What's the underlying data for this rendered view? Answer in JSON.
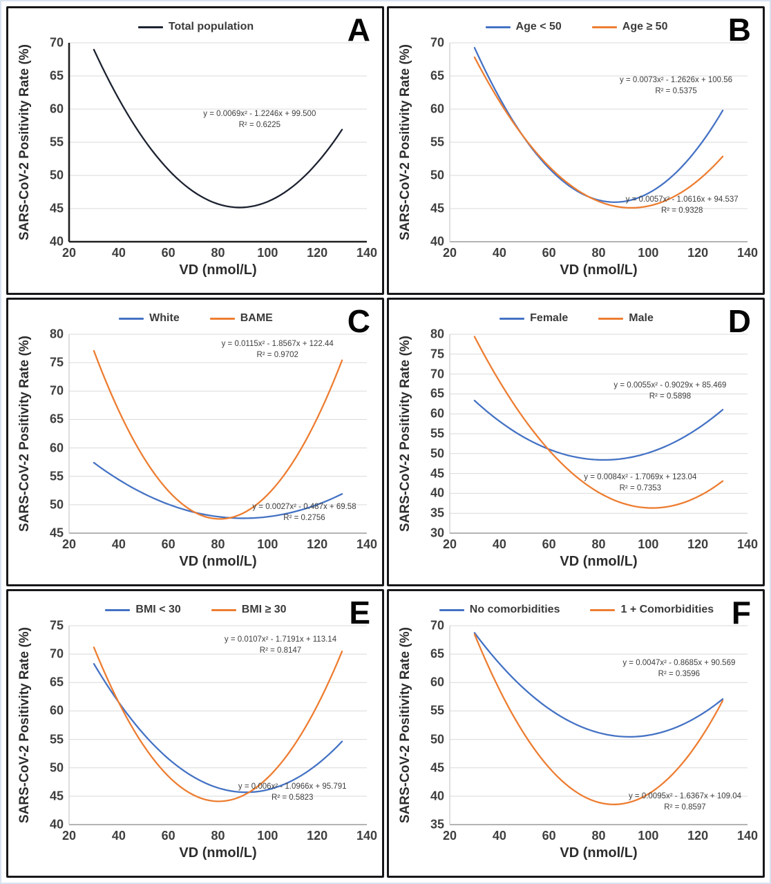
{
  "figure": {
    "description": "Six-panel figure of quadratic fits of SARS-CoV-2 positivity rate versus vitamin D concentration",
    "colors": {
      "blue": "#4472C4",
      "orange": "#ED7D31",
      "black_line": "#1c2230",
      "grid_line": "#d9d9d9",
      "axis_dark": "#1f1f1f",
      "axis_light": "#9a9a9a",
      "tick_text": "#3f3f3f"
    }
  },
  "chart_data": [
    {
      "type": "line",
      "letter": "A",
      "xlabel": "VD (nmol/L)",
      "ylabel": "SARS-CoV-2 Positivity Rate (%)",
      "xlim": [
        20,
        140
      ],
      "xticks": [
        20,
        40,
        60,
        80,
        100,
        120,
        140
      ],
      "ylim": [
        40,
        70
      ],
      "yticks": [
        70,
        65,
        60,
        55,
        50,
        45,
        40
      ],
      "x_data_range": [
        30,
        130
      ],
      "grid": "horizontal",
      "legend_position": "top",
      "axes_dark": true,
      "series": [
        {
          "name": "Total population",
          "color": "#1c2230",
          "quadratic": {
            "a": 0.0069,
            "b": -1.2246,
            "c": 99.5
          },
          "equation_label": "y = 0.0069x² - 1.2246x + 99.500",
          "r2_label": "R² = 0.6225",
          "label_pos": {
            "cx_pct": 64,
            "top_pct": 33
          }
        }
      ]
    },
    {
      "type": "line",
      "letter": "B",
      "xlabel": "VD (nmol/L)",
      "ylabel": "SARS-CoV-2 Positivity Rate (%)",
      "xlim": [
        20,
        140
      ],
      "xticks": [
        20,
        40,
        60,
        80,
        100,
        120,
        140
      ],
      "ylim": [
        40,
        70
      ],
      "yticks": [
        70,
        65,
        60,
        55,
        50,
        45,
        40
      ],
      "x_data_range": [
        30,
        130
      ],
      "grid": "horizontal",
      "legend_position": "top",
      "axes_dark": false,
      "series": [
        {
          "name": "Age < 50",
          "color": "#4472C4",
          "quadratic": {
            "a": 0.0073,
            "b": -1.2626,
            "c": 100.56
          },
          "equation_label": "y = 0.0073x² - 1.2626x + 100.56",
          "r2_label": "R² = 0.5375",
          "label_pos": {
            "cx_pct": 76,
            "top_pct": 16
          }
        },
        {
          "name": "Age ≥ 50",
          "color": "#ED7D31",
          "quadratic": {
            "a": 0.0057,
            "b": -1.0616,
            "c": 94.537
          },
          "equation_label": "y = 0.0057x² - 1.0616x + 94.537",
          "r2_label": "R² = 0.9328",
          "label_pos": {
            "cx_pct": 78,
            "top_pct": 76
          }
        }
      ]
    },
    {
      "type": "line",
      "letter": "C",
      "xlabel": "VD (nmol/L)",
      "ylabel": "SARS-CoV-2 Positivity Rate (%)",
      "xlim": [
        20,
        140
      ],
      "xticks": [
        20,
        40,
        60,
        80,
        100,
        120,
        140
      ],
      "ylim": [
        45,
        80
      ],
      "yticks": [
        80,
        75,
        70,
        65,
        60,
        55,
        50,
        45
      ],
      "x_data_range": [
        30,
        130
      ],
      "grid": "horizontal",
      "legend_position": "top",
      "axes_dark": false,
      "series": [
        {
          "name": "White",
          "color": "#4472C4",
          "quadratic": {
            "a": 0.0027,
            "b": -0.487,
            "c": 69.58
          },
          "equation_label": "y = 0.0027x² - 0.487x + 69.58",
          "r2_label": "R² = 0.2756",
          "label_pos": {
            "cx_pct": 79,
            "top_pct": 84
          }
        },
        {
          "name": "BAME",
          "color": "#ED7D31",
          "quadratic": {
            "a": 0.0115,
            "b": -1.8567,
            "c": 122.44
          },
          "equation_label": "y = 0.0115x² - 1.8567x + 122.44",
          "r2_label": "R² = 0.9702",
          "label_pos": {
            "cx_pct": 70,
            "top_pct": 2
          }
        }
      ]
    },
    {
      "type": "line",
      "letter": "D",
      "xlabel": "VD (nmol/L)",
      "ylabel": "SARS-CoV-2 Positivity Rate (%)",
      "xlim": [
        20,
        140
      ],
      "xticks": [
        20,
        40,
        60,
        80,
        100,
        120,
        140
      ],
      "ylim": [
        30,
        80
      ],
      "yticks": [
        80,
        75,
        70,
        65,
        60,
        55,
        50,
        45,
        40,
        35,
        30
      ],
      "x_data_range": [
        30,
        130
      ],
      "grid": "horizontal",
      "legend_position": "top",
      "axes_dark": false,
      "series": [
        {
          "name": "Female",
          "color": "#4472C4",
          "quadratic": {
            "a": 0.0055,
            "b": -0.9029,
            "c": 85.469
          },
          "equation_label": "y = 0.0055x² - 0.9029x + 85.469",
          "r2_label": "R² = 0.5898",
          "label_pos": {
            "cx_pct": 74,
            "top_pct": 23
          }
        },
        {
          "name": "Male",
          "color": "#ED7D31",
          "quadratic": {
            "a": 0.0084,
            "b": -1.7069,
            "c": 123.04
          },
          "equation_label": "y = 0.0084x² - 1.7069x + 123.04",
          "r2_label": "R² = 0.7353",
          "label_pos": {
            "cx_pct": 64,
            "top_pct": 69
          }
        }
      ]
    },
    {
      "type": "line",
      "letter": "E",
      "xlabel": "VD (nmol/L)",
      "ylabel": "SARS-CoV-2 Positivity Rate (%)",
      "xlim": [
        20,
        140
      ],
      "xticks": [
        20,
        40,
        60,
        80,
        100,
        120,
        140
      ],
      "ylim": [
        40,
        75
      ],
      "yticks": [
        75,
        70,
        65,
        60,
        55,
        50,
        45,
        40
      ],
      "x_data_range": [
        30,
        130
      ],
      "grid": "horizontal",
      "legend_position": "top",
      "axes_dark": false,
      "series": [
        {
          "name": "BMI < 30",
          "color": "#4472C4",
          "quadratic": {
            "a": 0.006,
            "b": -1.0966,
            "c": 95.791
          },
          "equation_label": "y = 0.006x² - 1.0966x + 95.791",
          "r2_label": "R² = 0.5823",
          "label_pos": {
            "cx_pct": 75,
            "top_pct": 78
          }
        },
        {
          "name": "BMI ≥ 30",
          "color": "#ED7D31",
          "quadratic": {
            "a": 0.0107,
            "b": -1.7191,
            "c": 113.14
          },
          "equation_label": "y = 0.0107x² - 1.7191x + 113.14",
          "r2_label": "R² = 0.8147",
          "label_pos": {
            "cx_pct": 71,
            "top_pct": 4
          }
        }
      ]
    },
    {
      "type": "line",
      "letter": "F",
      "xlabel": "VD (nmol/L)",
      "ylabel": "SARS-CoV-2 Positivity Rate (%)",
      "xlim": [
        20,
        140
      ],
      "xticks": [
        20,
        40,
        60,
        80,
        100,
        120,
        140
      ],
      "ylim": [
        35,
        70
      ],
      "yticks": [
        70,
        65,
        60,
        55,
        50,
        45,
        40,
        35
      ],
      "x_data_range": [
        30,
        130
      ],
      "grid": "horizontal",
      "legend_position": "top",
      "axes_dark": false,
      "series": [
        {
          "name": "No comorbidities",
          "color": "#4472C4",
          "quadratic": {
            "a": 0.0047,
            "b": -0.8685,
            "c": 90.569
          },
          "equation_label": "y = 0.0047x² - 0.8685x + 90.569",
          "r2_label": "R² = 0.3596",
          "label_pos": {
            "cx_pct": 77,
            "top_pct": 16
          }
        },
        {
          "name": "1 + Comorbidities",
          "color": "#ED7D31",
          "quadratic": {
            "a": 0.0095,
            "b": -1.6367,
            "c": 109.04
          },
          "equation_label": "y = 0.0095x² - 1.6367x + 109.04",
          "r2_label": "R² = 0.8597",
          "label_pos": {
            "cx_pct": 79,
            "top_pct": 83
          }
        }
      ]
    }
  ]
}
